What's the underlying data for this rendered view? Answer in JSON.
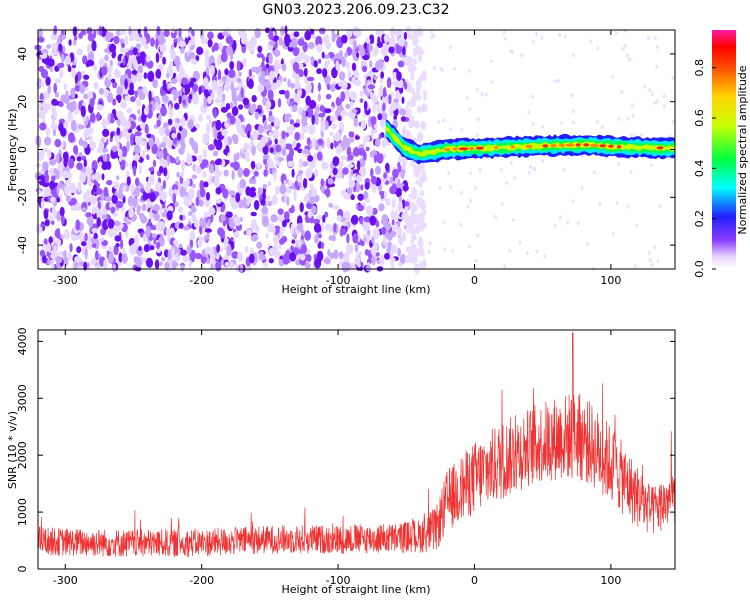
{
  "title": "GN03.2023.206.09.23.C32",
  "colors": {
    "snr_line": "#ef3333",
    "axis": "#000000",
    "noise": "#7a2cf0",
    "band_core": "#ff2020",
    "band_edge": "#20e0ff"
  },
  "chart_data": [
    {
      "type": "heatmap",
      "name": "spectrogram",
      "xlabel": "Height of straight line (km)",
      "ylabel": "Frequency (Hz)",
      "xlim": [
        -320,
        147
      ],
      "ylim": [
        -50,
        50
      ],
      "xticks": [
        -300,
        -200,
        -100,
        0,
        100
      ],
      "yticks": [
        -40,
        -20,
        0,
        20,
        40
      ],
      "noise_region": {
        "x": [
          -320,
          -42
        ],
        "y": [
          -50,
          50
        ]
      },
      "signal_band": {
        "x": [
          -65,
          147
        ],
        "center_y": 0,
        "halfwidth_hz": 2.5,
        "segments": [
          {
            "x": -65,
            "center": 9
          },
          {
            "x": -52,
            "center": 1
          },
          {
            "x": -40,
            "center": -2
          },
          {
            "x": -20,
            "center": 0
          },
          {
            "x": 0,
            "center": 0.5
          },
          {
            "x": 50,
            "center": 1.5
          },
          {
            "x": 80,
            "center": 2
          },
          {
            "x": 110,
            "center": 1
          },
          {
            "x": 147,
            "center": 0.5
          }
        ]
      },
      "colorbar": {
        "label": "Normalized spectral amplitude",
        "ticks": [
          "0.0",
          "0.2",
          "0.4",
          "0.6",
          "0.8"
        ],
        "range": [
          0,
          0.95
        ]
      },
      "grid": false
    },
    {
      "type": "line",
      "name": "snr",
      "xlabel": "Height of straight line (km)",
      "ylabel": "SNR (10 * v/v)",
      "xlim": [
        -320,
        147
      ],
      "ylim": [
        0,
        4200
      ],
      "xticks": [
        -300,
        -200,
        -100,
        0,
        100
      ],
      "yticks": [
        0,
        1000,
        2000,
        3000,
        4000
      ],
      "envelope": {
        "x": [
          -320,
          -300,
          -250,
          -200,
          -150,
          -100,
          -60,
          -40,
          -28,
          -20,
          0,
          20,
          40,
          60,
          75,
          85,
          100,
          115,
          130,
          147
        ],
        "mean": [
          500,
          470,
          450,
          460,
          520,
          520,
          540,
          580,
          700,
          1200,
          1600,
          1900,
          2150,
          2300,
          2350,
          2200,
          1850,
          1400,
          1000,
          1300
        ],
        "spread": [
          250,
          250,
          250,
          250,
          250,
          260,
          270,
          300,
          400,
          550,
          650,
          700,
          700,
          750,
          800,
          750,
          700,
          600,
          450,
          500
        ]
      },
      "peak": {
        "x": 72,
        "y": 4150
      },
      "grid": false
    }
  ]
}
